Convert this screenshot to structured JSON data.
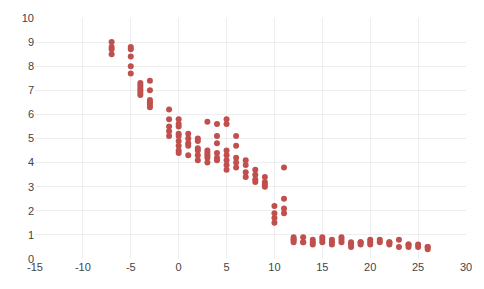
{
  "chart_data": {
    "type": "scatter",
    "x": [
      -7,
      -7,
      -7,
      -7,
      -5,
      -5,
      -5,
      -5,
      -5,
      -4,
      -4,
      -4,
      -4,
      -4,
      -4,
      -3,
      -3,
      -3,
      -3,
      -3,
      -3,
      -1,
      -1,
      -1,
      -1,
      -1,
      0,
      0,
      0,
      0,
      0,
      0,
      0,
      0,
      0,
      1,
      1,
      1,
      1,
      1,
      2,
      2,
      2,
      2,
      2,
      2,
      3,
      3,
      3,
      3,
      3,
      3,
      4,
      4,
      4,
      4,
      4,
      4,
      5,
      5,
      5,
      5,
      5,
      5,
      5,
      6,
      6,
      6,
      6,
      6,
      7,
      7,
      7,
      7,
      8,
      8,
      8,
      8,
      9,
      9,
      9,
      9,
      10,
      10,
      10,
      10,
      11,
      11,
      11,
      11,
      12,
      12,
      12,
      12,
      13,
      13,
      13,
      14,
      14,
      14,
      15,
      15,
      15,
      16,
      16,
      16,
      17,
      17,
      17,
      18,
      18,
      18,
      19,
      19,
      19,
      20,
      20,
      20,
      21,
      21,
      22,
      22,
      22,
      23,
      23,
      24,
      24,
      24,
      25,
      25,
      26,
      26,
      26
    ],
    "values": [
      8.8,
      9.0,
      8.5,
      8.7,
      8.7,
      8.4,
      8.0,
      7.7,
      8.8,
      7.1,
      7.0,
      6.8,
      7.3,
      7.2,
      6.9,
      7.4,
      6.5,
      6.4,
      6.6,
      6.3,
      7.0,
      5.1,
      5.5,
      5.8,
      6.2,
      5.3,
      4.5,
      5.1,
      5.2,
      4.7,
      4.9,
      5.5,
      5.8,
      4.4,
      5.6,
      4.3,
      4.8,
      5.0,
      5.2,
      4.7,
      4.3,
      4.5,
      4.6,
      5.0,
      4.9,
      4.1,
      4.2,
      4.3,
      4.5,
      4.4,
      4.0,
      5.7,
      4.1,
      4.2,
      4.4,
      5.1,
      4.8,
      5.6,
      3.7,
      3.9,
      4.1,
      4.3,
      4.5,
      5.6,
      5.8,
      4.0,
      5.1,
      4.2,
      4.7,
      3.8,
      3.6,
      3.9,
      4.1,
      3.4,
      3.5,
      3.7,
      3.3,
      3.2,
      3.0,
      3.4,
      3.2,
      3.1,
      1.7,
      1.5,
      1.9,
      2.2,
      3.8,
      2.1,
      2.5,
      1.9,
      0.8,
      0.9,
      0.7,
      0.8,
      0.7,
      0.9,
      0.7,
      0.8,
      0.6,
      0.7,
      0.9,
      0.7,
      0.8,
      0.8,
      0.7,
      0.6,
      0.9,
      0.7,
      0.8,
      0.6,
      0.7,
      0.5,
      0.7,
      0.7,
      0.6,
      0.8,
      0.7,
      0.6,
      0.7,
      0.8,
      0.6,
      0.7,
      0.7,
      0.8,
      0.5,
      0.6,
      0.6,
      0.5,
      0.5,
      0.6,
      0.5,
      0.5,
      0.4
    ],
    "color": "#C0504D",
    "xlim": [
      -15,
      30
    ],
    "ylim": [
      0,
      10
    ],
    "xticks": [
      -15,
      -10,
      -5,
      0,
      5,
      10,
      15,
      20,
      25,
      30
    ],
    "yticks": [
      0,
      1,
      2,
      3,
      4,
      5,
      6,
      7,
      8,
      9,
      10
    ],
    "grid": true
  }
}
